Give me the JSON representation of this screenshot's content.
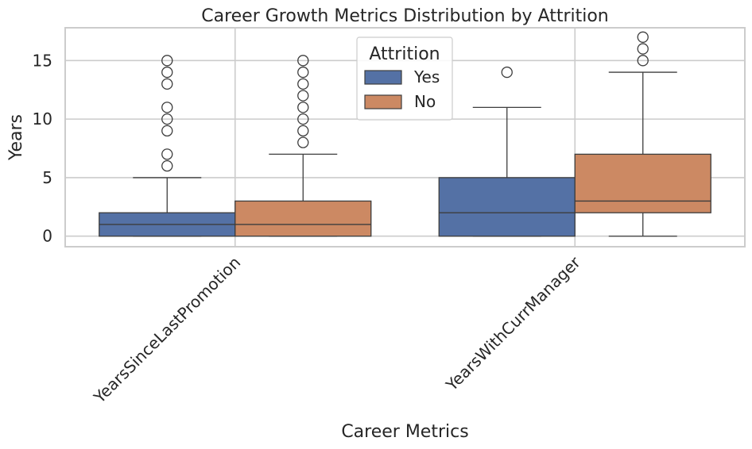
{
  "chart_data": {
    "type": "boxplot",
    "title": "Career Growth Metrics Distribution by Attrition",
    "xlabel": "Career Metrics",
    "ylabel": "Years",
    "ylim": [
      -0.9,
      17.8
    ],
    "yticks": [
      0,
      5,
      10,
      15
    ],
    "grid": true,
    "categories": [
      "YearsSinceLastPromotion",
      "YearsWithCurrManager"
    ],
    "legend": {
      "title": "Attrition",
      "position": "top-center",
      "entries": [
        "Yes",
        "No"
      ]
    },
    "series": [
      {
        "name": "Yes",
        "color": "#5471a5",
        "boxes": [
          {
            "category": "YearsSinceLastPromotion",
            "min": 0,
            "q1": 0,
            "median": 1,
            "q3": 2,
            "max": 5,
            "outliers": [
              6,
              7,
              9,
              10,
              11,
              13,
              14,
              15
            ]
          },
          {
            "category": "YearsWithCurrManager",
            "min": 0,
            "q1": 0,
            "median": 2,
            "q3": 5,
            "max": 11,
            "outliers": [
              14
            ]
          }
        ]
      },
      {
        "name": "No",
        "color": "#cc8963",
        "boxes": [
          {
            "category": "YearsSinceLastPromotion",
            "min": 0,
            "q1": 0,
            "median": 1,
            "q3": 3,
            "max": 7,
            "outliers": [
              8,
              9,
              10,
              11,
              12,
              13,
              14,
              15
            ]
          },
          {
            "category": "YearsWithCurrManager",
            "min": 0,
            "q1": 2,
            "median": 3,
            "q3": 7,
            "max": 14,
            "outliers": [
              15,
              16,
              17
            ]
          }
        ]
      }
    ]
  }
}
